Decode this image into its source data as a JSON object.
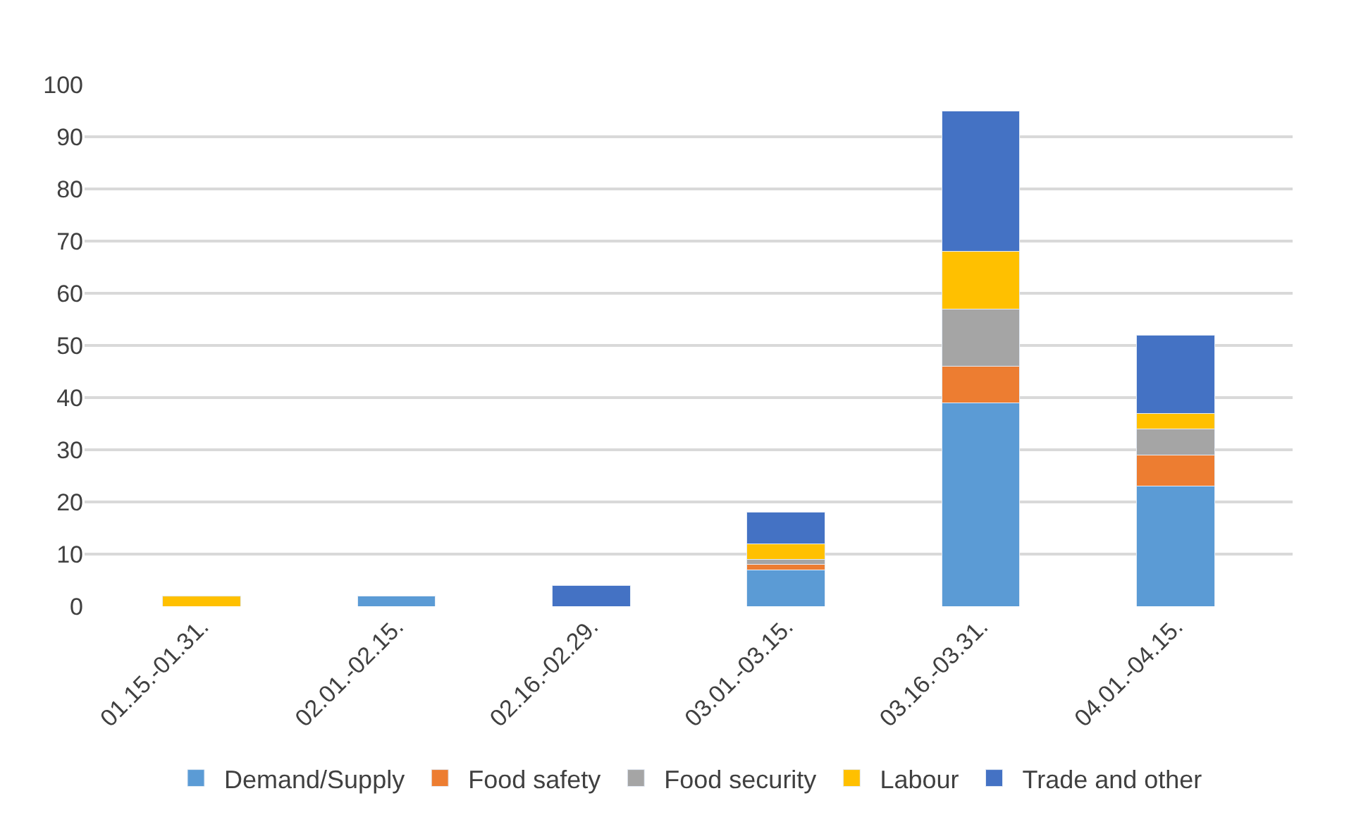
{
  "chart_data": {
    "type": "bar",
    "stacked": true,
    "categories": [
      "01.15.-01.31.",
      "02.01.-02.15.",
      "02.16.-02.29.",
      "03.01.-03.15.",
      "03.16.-03.31.",
      "04.01.-04.15."
    ],
    "series": [
      {
        "name": "Demand/Supply",
        "color": "#5b9bd5",
        "values": [
          null,
          2,
          null,
          7,
          39,
          23
        ]
      },
      {
        "name": "Food safety",
        "color": "#ed7d31",
        "values": [
          null,
          null,
          null,
          1,
          7,
          6
        ]
      },
      {
        "name": "Food security",
        "color": "#a5a5a5",
        "values": [
          null,
          null,
          null,
          1,
          11,
          5
        ]
      },
      {
        "name": "Labour",
        "color": "#ffc000",
        "values": [
          2,
          null,
          null,
          3,
          11,
          3
        ]
      },
      {
        "name": "Trade and other",
        "color": "#4472c4",
        "values": [
          null,
          null,
          4,
          6,
          27,
          15
        ]
      }
    ],
    "ylim": [
      0,
      100
    ],
    "yticks": [
      0,
      10,
      20,
      30,
      40,
      50,
      60,
      70,
      80,
      90,
      100
    ],
    "grid": "y",
    "legend": "bottom"
  }
}
